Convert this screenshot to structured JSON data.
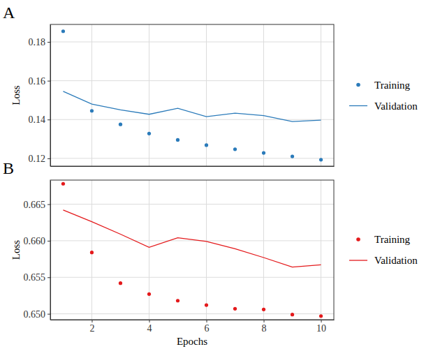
{
  "chart_data": [
    {
      "type": "line",
      "title": "A",
      "ylabel": "Loss",
      "x": [
        1,
        2,
        3,
        4,
        5,
        6,
        7,
        8,
        9,
        10
      ],
      "xlim": [
        0.55,
        10.45
      ],
      "xticks": [
        2,
        4,
        6,
        8,
        10
      ],
      "ylim": [
        0.116,
        0.189
      ],
      "yticks": [
        0.12,
        0.14,
        0.16,
        0.18
      ],
      "grid": true,
      "legend": "right",
      "tick_labels": "y",
      "series": [
        {
          "name": "Training",
          "type": "scatter",
          "marker": "circle",
          "color": "#2b7bba",
          "values": [
            0.1855,
            0.1445,
            0.1375,
            0.1328,
            0.1295,
            0.1268,
            0.1247,
            0.1228,
            0.121,
            0.1193
          ]
        },
        {
          "name": "Validation",
          "type": "line",
          "line_style": "solid",
          "color": "#2b7bba",
          "values": [
            0.1545,
            0.148,
            0.145,
            0.1427,
            0.1458,
            0.1415,
            0.1433,
            0.142,
            0.139,
            0.1397
          ]
        }
      ]
    },
    {
      "type": "line",
      "title": "B",
      "ylabel": "Loss",
      "xlabel": "Epochs",
      "x": [
        1,
        2,
        3,
        4,
        5,
        6,
        7,
        8,
        9,
        10
      ],
      "xlim": [
        0.55,
        10.45
      ],
      "xticks": [
        2,
        4,
        6,
        8,
        10
      ],
      "ylim": [
        0.6492,
        0.6683
      ],
      "yticks": [
        {
          "value": 0.65,
          "label": "0.650"
        },
        0.655,
        {
          "value": 0.66,
          "label": "0.660"
        },
        0.665
      ],
      "grid": true,
      "legend": "right",
      "series": [
        {
          "name": "Training",
          "type": "scatter",
          "marker": "circle",
          "color": "#e41a1c",
          "values": [
            0.6678,
            0.6584,
            0.6542,
            0.6527,
            0.6518,
            0.6512,
            0.6507,
            0.6506,
            0.6499,
            0.6497
          ]
        },
        {
          "name": "Validation",
          "type": "line",
          "line_style": "solid",
          "color": "#e41a1c",
          "values": [
            0.6642,
            0.6626,
            0.6609,
            0.6591,
            0.6604,
            0.6599,
            0.6589,
            0.6577,
            0.6564,
            0.6567
          ]
        }
      ]
    }
  ]
}
